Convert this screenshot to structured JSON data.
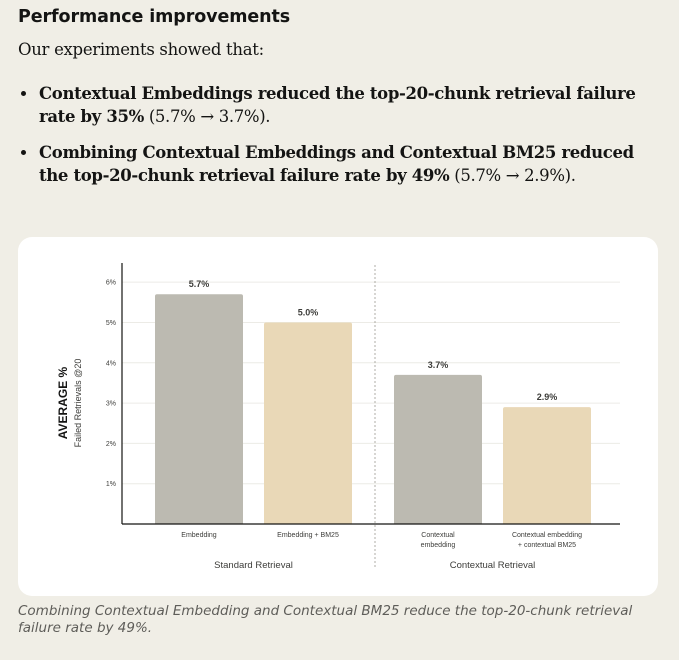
{
  "heading": "Performance improvements",
  "intro": "Our experiments showed that:",
  "bullets": [
    {
      "bold_lead": "Contextual Embeddings reduced the top-20-chunk retrieval failure rate by 35%",
      "detail": " (5.7% → 3.7%)."
    },
    {
      "bold_lead": "Combining Contextual Embeddings and Contextual BM25 reduced the top-20-chunk retrieval failure rate by 49%",
      "detail": " (5.7% → 2.9%)."
    }
  ],
  "caption": "Combining Contextual Embedding and Contextual BM25 reduce the top-20-chunk retrieval failure rate by 49%.",
  "chart_data": {
    "type": "bar",
    "ylabel": "AVERAGE %",
    "ylabel_sub": "Failed Retrievals @20",
    "ylim": [
      0,
      6.5
    ],
    "yticks": [
      1,
      2,
      3,
      4,
      5,
      6
    ],
    "ytick_labels": [
      "1%",
      "2%",
      "3%",
      "4%",
      "5%",
      "6%"
    ],
    "grid": true,
    "groups": [
      {
        "label": "Standard Retrieval",
        "bars": [
          {
            "label": [
              "Embedding"
            ],
            "value": 5.7,
            "value_label": "5.7%",
            "color": "#bcbab1"
          },
          {
            "label": [
              "Embedding + BM25"
            ],
            "value": 5.0,
            "value_label": "5.0%",
            "color": "#e9d8b7"
          }
        ]
      },
      {
        "label": "Contextual Retrieval",
        "bars": [
          {
            "label": [
              "Contextual",
              "embedding"
            ],
            "value": 3.7,
            "value_label": "3.7%",
            "color": "#bcbab1"
          },
          {
            "label": [
              "Contextual embedding",
              "+ contextual BM25"
            ],
            "value": 2.9,
            "value_label": "2.9%",
            "color": "#e9d8b7"
          }
        ]
      }
    ]
  }
}
